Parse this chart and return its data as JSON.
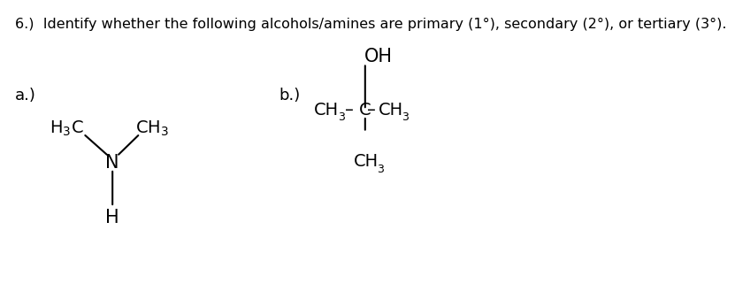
{
  "title": "6.)  Identify whether the following alcohols/amines are primary (1°), secondary (2°), or tertiary (3°).",
  "title_fontsize": 11.5,
  "label_a": "a.)",
  "label_b": "b.)",
  "bg_color": "#ffffff",
  "text_color": "#000000",
  "fig_width": 8.06,
  "fig_height": 3.27,
  "font_main": 14,
  "font_sub": 9
}
